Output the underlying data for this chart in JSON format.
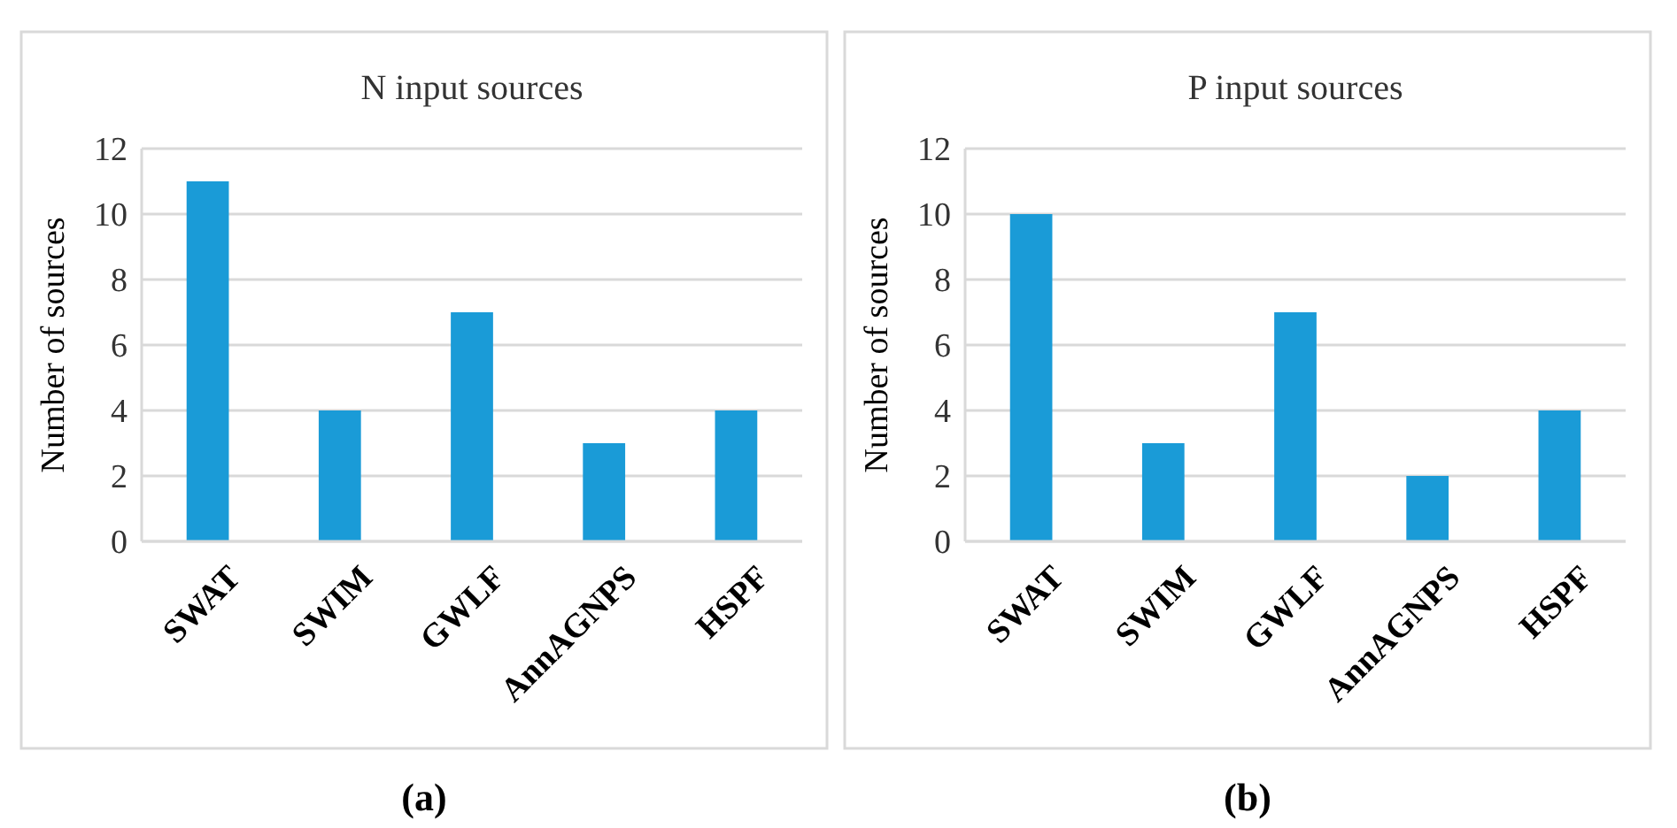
{
  "chart_data": [
    {
      "type": "bar",
      "title": "N input sources",
      "ylabel": "Number of sources",
      "categories": [
        "SWAT",
        "SWIM",
        "GWLF",
        "AnnAGNPS",
        "HSPF"
      ],
      "values": [
        11,
        4,
        7,
        3,
        4
      ],
      "color": "#1a9bd7",
      "ylim": [
        0,
        12
      ],
      "yticks": [
        0,
        2,
        4,
        6,
        8,
        10,
        12
      ],
      "grid": "y",
      "annotations": [
        "(a)"
      ]
    },
    {
      "type": "bar",
      "title": "P input sources",
      "ylabel": "Number of sources",
      "categories": [
        "SWAT",
        "SWIM",
        "GWLF",
        "AnnAGNPS",
        "HSPF"
      ],
      "values": [
        10,
        3,
        7,
        2,
        4
      ],
      "color": "#1a9bd7",
      "ylim": [
        0,
        12
      ],
      "yticks": [
        0,
        2,
        4,
        6,
        8,
        10,
        12
      ],
      "grid": "y",
      "annotations": [
        "(b)"
      ]
    }
  ]
}
